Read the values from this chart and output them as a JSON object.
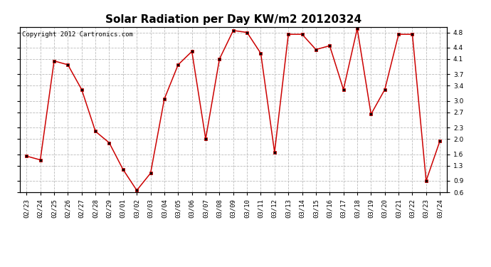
{
  "title": "Solar Radiation per Day KW/m2 20120324",
  "copyright_text": "Copyright 2012 Cartronics.com",
  "dates": [
    "02/23",
    "02/24",
    "02/25",
    "02/26",
    "02/27",
    "02/28",
    "02/29",
    "03/01",
    "03/02",
    "03/03",
    "03/04",
    "03/05",
    "03/06",
    "03/07",
    "03/08",
    "03/09",
    "03/10",
    "03/11",
    "03/12",
    "03/13",
    "03/14",
    "03/15",
    "03/16",
    "03/17",
    "03/18",
    "03/19",
    "03/20",
    "03/21",
    "03/22",
    "03/23",
    "03/24"
  ],
  "values": [
    1.55,
    1.45,
    4.05,
    3.95,
    3.3,
    2.2,
    1.9,
    1.2,
    0.65,
    1.1,
    3.05,
    3.95,
    4.3,
    2.0,
    4.1,
    4.85,
    4.8,
    4.25,
    1.65,
    4.75,
    4.75,
    4.35,
    4.45,
    3.3,
    4.9,
    2.65,
    3.3,
    4.75,
    4.75,
    0.9,
    1.95
  ],
  "line_color": "#cc0000",
  "marker": "s",
  "marker_size": 3.0,
  "ylim_min": 0.6,
  "ylim_max": 4.95,
  "yticks": [
    0.6,
    0.9,
    1.3,
    1.6,
    2.0,
    2.3,
    2.7,
    3.0,
    3.4,
    3.7,
    4.1,
    4.4,
    4.8
  ],
  "background_color": "#ffffff",
  "grid_color": "#bbbbbb",
  "title_fontsize": 11,
  "tick_fontsize": 6.5,
  "copyright_fontsize": 6.5
}
